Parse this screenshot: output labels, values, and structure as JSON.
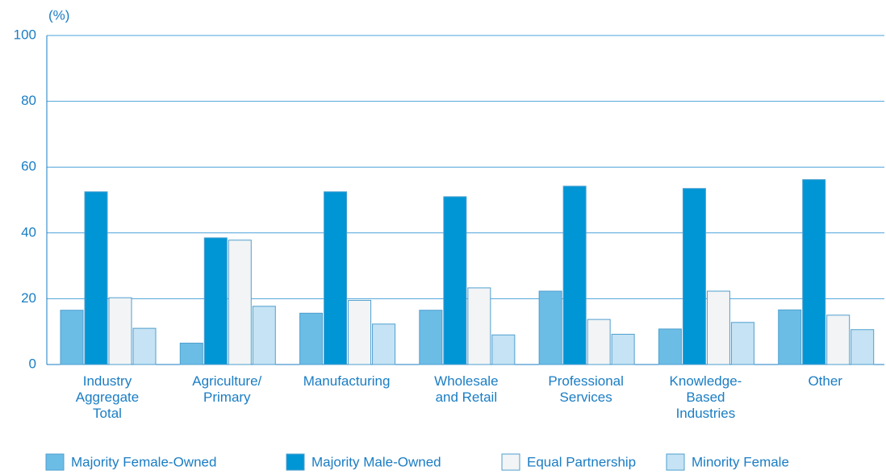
{
  "chart_data": {
    "type": "bar",
    "y_axis_label": "(%)",
    "categories": [
      "Industry\nAggregate\nTotal",
      "Agriculture/\nPrimary",
      "Manufacturing",
      "Wholesale\nand Retail",
      "Professional\nServices",
      "Knowledge-\nBased\nIndustries",
      "Other"
    ],
    "series": [
      {
        "name": "Majority Female-Owned",
        "color": "#6bbde6",
        "values": [
          16.5,
          6.5,
          15.6,
          16.5,
          22.3,
          10.8,
          16.6
        ]
      },
      {
        "name": "Majority Male-Owned",
        "color": "#0095d5",
        "values": [
          52.5,
          38.5,
          52.5,
          51,
          54.2,
          53.5,
          56.2
        ]
      },
      {
        "name": "Equal Partnership",
        "color": "#f2f4f5",
        "values": [
          20.3,
          37.8,
          19.5,
          23.3,
          13.7,
          22.3,
          15
        ]
      },
      {
        "name": "Minority Female",
        "color": "#c5e3f4",
        "values": [
          11,
          17.7,
          12.3,
          9,
          9.2,
          12.8,
          10.6
        ]
      }
    ],
    "ylim": [
      0,
      100
    ],
    "yticks": [
      0,
      20,
      40,
      60,
      80,
      100
    ],
    "grid": true
  }
}
